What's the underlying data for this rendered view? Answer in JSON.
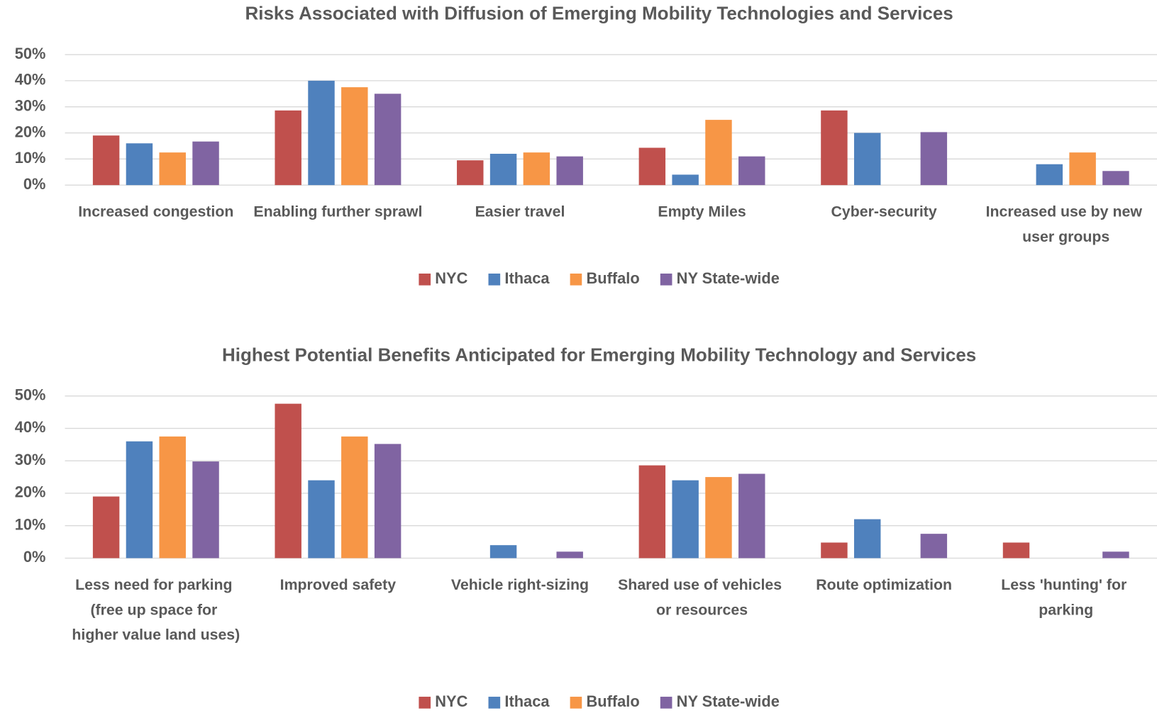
{
  "chart_data": [
    {
      "type": "bar",
      "title": "Risks Associated with Diffusion of Emerging Mobility Technologies and Services",
      "categories": [
        "Increased congestion",
        "Enabling further sprawl",
        "Easier travel",
        "Empty Miles",
        "Cyber-security",
        "Increased use by new user groups"
      ],
      "series": [
        {
          "name": "NYC",
          "color": "#c0504d",
          "values": [
            19,
            28.6,
            9.5,
            14.3,
            28.6,
            0
          ]
        },
        {
          "name": "Ithaca",
          "color": "#4f81bd",
          "values": [
            16,
            40,
            12,
            4,
            20,
            8
          ]
        },
        {
          "name": "Buffalo",
          "color": "#f79646",
          "values": [
            12.5,
            37.5,
            12.5,
            25,
            0,
            12.5
          ]
        },
        {
          "name": "NY State-wide",
          "color": "#8064a2",
          "values": [
            16.7,
            35,
            11,
            11,
            20.3,
            5.4
          ]
        }
      ],
      "ylim": [
        0,
        50
      ],
      "yticks": [
        {
          "value": 0,
          "label": "0%"
        },
        {
          "value": 10,
          "label": "10%"
        },
        {
          "value": 20,
          "label": "20%"
        },
        {
          "value": 30,
          "label": "30%"
        },
        {
          "value": 40,
          "label": "40%"
        },
        {
          "value": 50,
          "label": "50%"
        }
      ],
      "grid": true,
      "legend": "bottom"
    },
    {
      "type": "bar",
      "title": "Highest Potential Benefits Anticipated for Emerging Mobility Technology and Services",
      "categories": [
        "Less need for parking (free up space for higher value land uses)",
        "Improved safety",
        "Vehicle right-sizing",
        "Shared use of vehicles or resources",
        "Route optimization",
        "Less 'hunting' for parking"
      ],
      "series": [
        {
          "name": "NYC",
          "color": "#c0504d",
          "values": [
            19,
            47.6,
            0,
            28.6,
            4.8,
            4.8
          ]
        },
        {
          "name": "Ithaca",
          "color": "#4f81bd",
          "values": [
            36,
            24,
            4,
            24,
            12,
            0
          ]
        },
        {
          "name": "Buffalo",
          "color": "#f79646",
          "values": [
            37.5,
            37.5,
            0,
            25,
            0,
            0
          ]
        },
        {
          "name": "NY State-wide",
          "color": "#8064a2",
          "values": [
            29.8,
            35.2,
            2,
            26,
            7.5,
            2
          ]
        }
      ],
      "ylim": [
        0,
        50
      ],
      "yticks": [
        {
          "value": 0,
          "label": "0%"
        },
        {
          "value": 10,
          "label": "10%"
        },
        {
          "value": 20,
          "label": "20%"
        },
        {
          "value": 30,
          "label": "30%"
        },
        {
          "value": 40,
          "label": "40%"
        },
        {
          "value": 50,
          "label": "50%"
        }
      ],
      "grid": true,
      "legend": "bottom"
    }
  ]
}
